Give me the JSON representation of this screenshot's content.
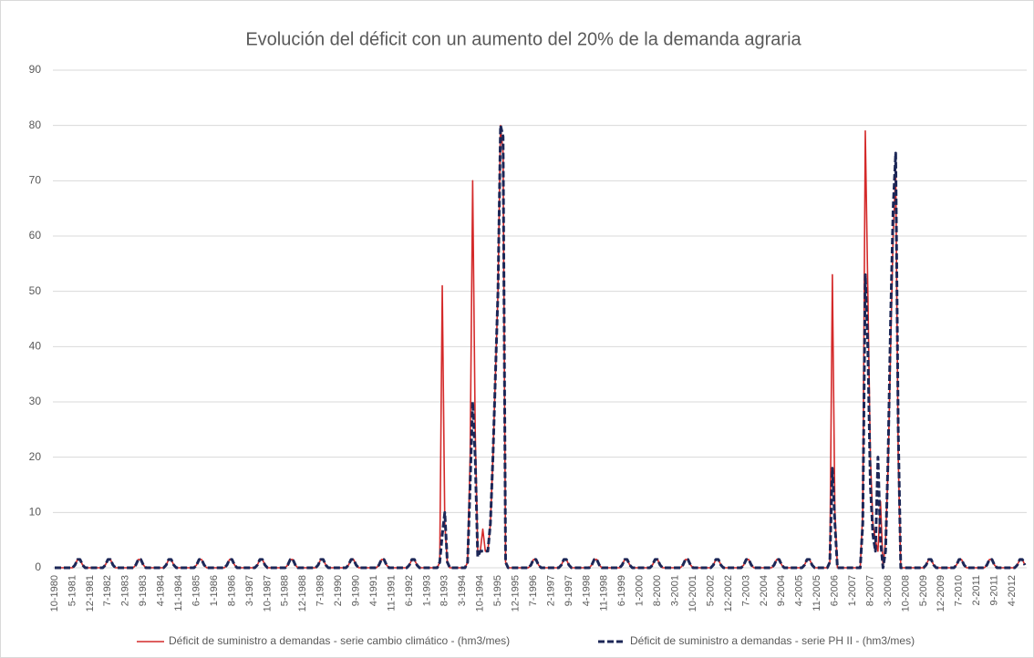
{
  "chart_data": {
    "type": "line",
    "title": "Evolución del déficit con un aumento del 20% de la demanda agraria",
    "ylim": [
      0,
      90
    ],
    "yticks": [
      0,
      10,
      20,
      30,
      40,
      50,
      60,
      70,
      80,
      90
    ],
    "grid": true,
    "legend": "bottom",
    "categories": [
      "10-1980",
      null,
      null,
      null,
      null,
      null,
      null,
      "5-1981",
      null,
      null,
      null,
      null,
      null,
      null,
      "12-1981",
      null,
      null,
      null,
      null,
      null,
      null,
      "7-1982",
      null,
      null,
      null,
      null,
      null,
      null,
      "2-1983",
      null,
      null,
      null,
      null,
      null,
      null,
      "9-1983",
      null,
      null,
      null,
      null,
      null,
      null,
      "4-1984",
      null,
      null,
      null,
      null,
      null,
      null,
      "11-1984",
      null,
      null,
      null,
      null,
      null,
      null,
      "6-1985",
      null,
      null,
      null,
      null,
      null,
      null,
      "1-1986",
      null,
      null,
      null,
      null,
      null,
      null,
      "8-1986",
      null,
      null,
      null,
      null,
      null,
      null,
      "3-1987",
      null,
      null,
      null,
      null,
      null,
      null,
      "10-1987",
      null,
      null,
      null,
      null,
      null,
      null,
      "5-1988",
      null,
      null,
      null,
      null,
      null,
      null,
      "12-1988",
      null,
      null,
      null,
      null,
      null,
      null,
      "7-1989",
      null,
      null,
      null,
      null,
      null,
      null,
      "2-1990",
      null,
      null,
      null,
      null,
      null,
      null,
      "9-1990",
      null,
      null,
      null,
      null,
      null,
      null,
      "4-1991",
      null,
      null,
      null,
      null,
      null,
      null,
      "11-1991",
      null,
      null,
      null,
      null,
      null,
      null,
      "6-1992",
      null,
      null,
      null,
      null,
      null,
      null,
      "1-1993",
      null,
      null,
      null,
      null,
      null,
      null,
      "8-1993",
      null,
      null,
      null,
      null,
      null,
      null,
      "3-1994",
      null,
      null,
      null,
      null,
      null,
      null,
      "10-1994",
      null,
      null,
      null,
      null,
      null,
      null,
      "5-1995",
      null,
      null,
      null,
      null,
      null,
      null,
      "12-1995",
      null,
      null,
      null,
      null,
      null,
      null,
      "7-1996",
      null,
      null,
      null,
      null,
      null,
      null,
      "2-1997",
      null,
      null,
      null,
      null,
      null,
      null,
      "9-1997",
      null,
      null,
      null,
      null,
      null,
      null,
      "4-1998",
      null,
      null,
      null,
      null,
      null,
      null,
      "11-1998",
      null,
      null,
      null,
      null,
      null,
      null,
      "6-1999",
      null,
      null,
      null,
      null,
      null,
      null,
      "1-2000",
      null,
      null,
      null,
      null,
      null,
      null,
      "8-2000",
      null,
      null,
      null,
      null,
      null,
      null,
      "3-2001",
      null,
      null,
      null,
      null,
      null,
      null,
      "10-2001",
      null,
      null,
      null,
      null,
      null,
      null,
      "5-2002",
      null,
      null,
      null,
      null,
      null,
      null,
      "12-2002",
      null,
      null,
      null,
      null,
      null,
      null,
      "7-2003",
      null,
      null,
      null,
      null,
      null,
      null,
      "2-2004",
      null,
      null,
      null,
      null,
      null,
      null,
      "9-2004",
      null,
      null,
      null,
      null,
      null,
      null,
      "4-2005",
      null,
      null,
      null,
      null,
      null,
      null,
      "11-2005",
      null,
      null,
      null,
      null,
      null,
      null,
      "6-2006",
      null,
      null,
      null,
      null,
      null,
      null,
      "1-2007",
      null,
      null,
      null,
      null,
      null,
      null,
      "8-2007",
      null,
      null,
      null,
      null,
      null,
      null,
      "3-2008",
      null,
      null,
      null,
      null,
      null,
      null,
      "10-2008",
      null,
      null,
      null,
      null,
      null,
      null,
      "5-2009",
      null,
      null,
      null,
      null,
      null,
      null,
      "12-2009",
      null,
      null,
      null,
      null,
      null,
      null,
      "7-2010",
      null,
      null,
      null,
      null,
      null,
      null,
      "2-2011",
      null,
      null,
      null,
      null,
      null,
      null,
      "9-2011",
      null,
      null,
      null,
      null,
      null,
      null,
      "4-2012",
      null,
      null,
      null,
      null,
      null
    ],
    "series": [
      {
        "name": "Déficit de suministro a demandas - serie cambio climático - (hm3/mes)",
        "color": "#d42a2a",
        "line_style": "solid",
        "values": [
          0,
          0,
          0,
          0,
          0,
          0,
          0,
          0,
          0.5,
          1.5,
          1.5,
          0.5,
          0,
          0,
          0,
          0,
          0,
          0,
          0,
          0,
          0.5,
          1.5,
          1.5,
          0.5,
          0,
          0,
          0,
          0,
          0,
          0,
          0,
          0,
          0.5,
          1.5,
          1.5,
          0.5,
          0,
          0,
          0,
          0,
          0,
          0,
          0,
          0,
          0.5,
          1.5,
          1.5,
          0.5,
          0,
          0,
          0,
          0,
          0,
          0,
          0,
          0,
          0.5,
          1.5,
          1.5,
          0.5,
          0,
          0,
          0,
          0,
          0,
          0,
          0,
          0,
          0.5,
          1.5,
          1.5,
          0.5,
          0,
          0,
          0,
          0,
          0,
          0,
          0,
          0,
          0.5,
          1.5,
          1.5,
          0.5,
          0,
          0,
          0,
          0,
          0,
          0,
          0,
          0,
          0.5,
          1.5,
          1.5,
          0.5,
          0,
          0,
          0,
          0,
          0,
          0,
          0,
          0,
          0.5,
          1.5,
          1.5,
          0.5,
          0,
          0,
          0,
          0,
          0,
          0,
          0,
          0,
          0.5,
          1.5,
          1.5,
          0.5,
          0,
          0,
          0,
          0,
          0,
          0,
          0,
          0,
          0.5,
          1.5,
          1.5,
          0.5,
          0,
          0,
          0,
          0,
          0,
          0,
          0,
          0,
          0.5,
          1.5,
          1.5,
          0.5,
          0,
          0,
          0,
          0,
          0,
          0,
          0,
          0,
          1,
          51,
          8,
          1,
          0,
          0,
          0,
          0,
          0,
          0,
          0,
          1,
          20,
          70,
          25,
          3,
          3,
          7,
          3,
          3,
          8,
          20,
          35,
          50,
          80,
          75,
          1,
          0,
          0,
          0,
          0,
          0,
          0,
          0,
          0,
          0,
          0.5,
          1.5,
          1.5,
          0.5,
          0,
          0,
          0,
          0,
          0,
          0,
          0,
          0,
          0.5,
          1.5,
          1.5,
          0.5,
          0,
          0,
          0,
          0,
          0,
          0,
          0,
          0,
          0.5,
          1.5,
          1.5,
          0.5,
          0,
          0,
          0,
          0,
          0,
          0,
          0,
          0,
          0.5,
          1.5,
          1.5,
          0.5,
          0,
          0,
          0,
          0,
          0,
          0,
          0,
          0,
          0.5,
          1.5,
          1.5,
          0.5,
          0,
          0,
          0,
          0,
          0,
          0,
          0,
          0,
          0.5,
          1.5,
          1.5,
          0.5,
          0,
          0,
          0,
          0,
          0,
          0,
          0,
          0,
          0.5,
          1.5,
          1.5,
          0.5,
          0,
          0,
          0,
          0,
          0,
          0,
          0,
          0,
          0.5,
          1.5,
          1.5,
          0.5,
          0,
          0,
          0,
          0,
          0,
          0,
          0,
          0,
          0.5,
          1.5,
          1.5,
          0.5,
          0,
          0,
          0,
          0,
          0,
          0,
          0,
          0,
          0.5,
          1.5,
          1.5,
          0.5,
          0,
          0,
          0,
          0,
          0,
          0,
          1,
          53,
          10,
          0,
          0,
          0,
          0,
          0,
          0,
          0,
          0,
          0,
          0,
          10,
          79,
          50,
          20,
          8,
          5,
          3,
          12,
          0,
          5,
          18,
          40,
          60,
          72,
          20,
          0,
          0,
          0,
          0,
          0,
          0,
          0,
          0,
          0,
          0,
          0.5,
          1.5,
          1.5,
          0.5,
          0,
          0,
          0,
          0,
          0,
          0,
          0,
          0,
          0.5,
          1.5,
          1.5,
          0.5,
          0,
          0,
          0,
          0,
          0,
          0,
          0,
          0,
          0.5,
          1.5,
          1.5,
          0.5,
          0,
          0,
          0,
          0,
          0,
          0,
          0,
          0,
          0.5,
          1.5,
          1.5,
          0.5
        ]
      },
      {
        "name": "Déficit de suministro a demandas - serie PH II - (hm3/mes)",
        "color": "#1c2757",
        "line_style": "dashed",
        "values": [
          0,
          0,
          0,
          0,
          0,
          0,
          0,
          0,
          0.5,
          1.5,
          1.5,
          0.5,
          0,
          0,
          0,
          0,
          0,
          0,
          0,
          0,
          0.5,
          1.5,
          1.5,
          0.5,
          0,
          0,
          0,
          0,
          0,
          0,
          0,
          0,
          0.5,
          1.5,
          1.5,
          0.5,
          0,
          0,
          0,
          0,
          0,
          0,
          0,
          0,
          0.5,
          1.5,
          1.5,
          0.5,
          0,
          0,
          0,
          0,
          0,
          0,
          0,
          0,
          0.5,
          1.5,
          1.5,
          0.5,
          0,
          0,
          0,
          0,
          0,
          0,
          0,
          0,
          0.5,
          1.5,
          1.5,
          0.5,
          0,
          0,
          0,
          0,
          0,
          0,
          0,
          0,
          0.5,
          1.5,
          1.5,
          0.5,
          0,
          0,
          0,
          0,
          0,
          0,
          0,
          0,
          0.5,
          1.5,
          1.5,
          0.5,
          0,
          0,
          0,
          0,
          0,
          0,
          0,
          0,
          0.5,
          1.5,
          1.5,
          0.5,
          0,
          0,
          0,
          0,
          0,
          0,
          0,
          0,
          0.5,
          1.5,
          1.5,
          0.5,
          0,
          0,
          0,
          0,
          0,
          0,
          0,
          0,
          0.5,
          1.5,
          1.5,
          0.5,
          0,
          0,
          0,
          0,
          0,
          0,
          0,
          0,
          0.5,
          1.5,
          1.5,
          0.5,
          0,
          0,
          0,
          0,
          0,
          0,
          0,
          0,
          1,
          6,
          10,
          1,
          0,
          0,
          0,
          0,
          0,
          0,
          0,
          1,
          15,
          30,
          20,
          2,
          3,
          3,
          3,
          3,
          8,
          20,
          35,
          50,
          80,
          78,
          1,
          0,
          0,
          0,
          0,
          0,
          0,
          0,
          0,
          0,
          0.5,
          1.5,
          1.5,
          0.5,
          0,
          0,
          0,
          0,
          0,
          0,
          0,
          0,
          0.5,
          1.5,
          1.5,
          0.5,
          0,
          0,
          0,
          0,
          0,
          0,
          0,
          0,
          0.5,
          1.5,
          1.5,
          0.5,
          0,
          0,
          0,
          0,
          0,
          0,
          0,
          0,
          0.5,
          1.5,
          1.5,
          0.5,
          0,
          0,
          0,
          0,
          0,
          0,
          0,
          0,
          0.5,
          1.5,
          1.5,
          0.5,
          0,
          0,
          0,
          0,
          0,
          0,
          0,
          0,
          0.5,
          1.5,
          1.5,
          0.5,
          0,
          0,
          0,
          0,
          0,
          0,
          0,
          0,
          0.5,
          1.5,
          1.5,
          0.5,
          0,
          0,
          0,
          0,
          0,
          0,
          0,
          0,
          0.5,
          1.5,
          1.5,
          0.5,
          0,
          0,
          0,
          0,
          0,
          0,
          0,
          0,
          0.5,
          1.5,
          1.5,
          0.5,
          0,
          0,
          0,
          0,
          0,
          0,
          0,
          0,
          0.5,
          1.5,
          1.5,
          0.5,
          0,
          0,
          0,
          0,
          0,
          0,
          1,
          18,
          8,
          0,
          0,
          0,
          0,
          0,
          0,
          0,
          0,
          0,
          0,
          8,
          53,
          40,
          15,
          6,
          3,
          20,
          5,
          0,
          3,
          20,
          45,
          65,
          75,
          25,
          0,
          0,
          0,
          0,
          0,
          0,
          0,
          0,
          0,
          0,
          0.5,
          1.5,
          1.5,
          0.5,
          0,
          0,
          0,
          0,
          0,
          0,
          0,
          0,
          0.5,
          1.5,
          1.5,
          0.5,
          0,
          0,
          0,
          0,
          0,
          0,
          0,
          0,
          0.5,
          1.5,
          1.5,
          0.5,
          0,
          0,
          0,
          0,
          0,
          0,
          0,
          0,
          0.5,
          1.5,
          1.5,
          0.5
        ]
      }
    ]
  }
}
